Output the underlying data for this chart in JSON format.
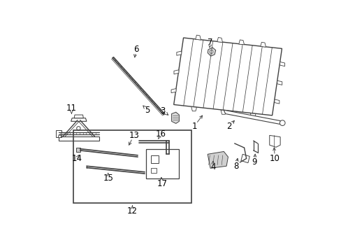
{
  "bg_color": "#ffffff",
  "line_color": "#404040",
  "label_color": "#000000",
  "font_size": 8.5,
  "figsize": [
    4.89,
    3.6
  ],
  "dpi": 100
}
